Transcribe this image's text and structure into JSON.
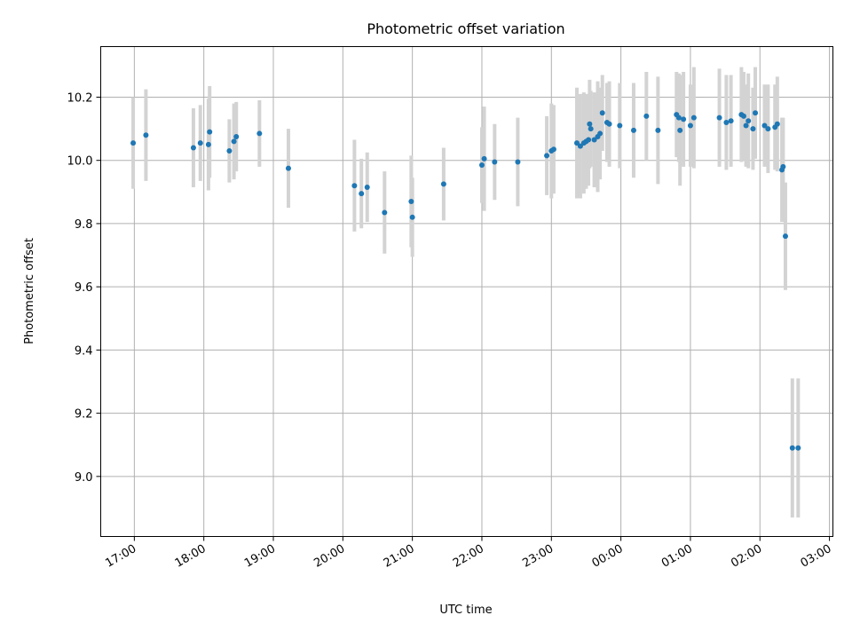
{
  "chart_data": {
    "type": "scatter",
    "title": "Photometric offset variation",
    "xlabel": "UTC time",
    "ylabel": "Photometric offset",
    "x_ticks": [
      "17:00",
      "18:00",
      "19:00",
      "20:00",
      "21:00",
      "22:00",
      "23:00",
      "00:00",
      "01:00",
      "02:00",
      "03:00"
    ],
    "y_ticks": [
      "9.0",
      "9.2",
      "9.4",
      "9.6",
      "9.8",
      "10.0",
      "10.2"
    ],
    "xlim": [
      "16:31",
      "03:03"
    ],
    "ylim": [
      8.81,
      10.36
    ],
    "grid": true,
    "errorbar_color": "#d3d3d3",
    "point_color": "#1f77b4",
    "series": [
      {
        "x": [
          "16:59",
          "17:10",
          "17:51",
          "17:57",
          "18:04",
          "18:05",
          "18:22",
          "18:26",
          "18:28",
          "18:48",
          "19:13",
          "20:10",
          "20:16",
          "20:21",
          "20:36",
          "20:59",
          "21:00",
          "21:27",
          "22:00",
          "22:02",
          "22:11",
          "22:31",
          "22:56",
          "23:00",
          "23:02",
          "23:22",
          "23:25",
          "23:28",
          "23:30",
          "23:32",
          "23:33",
          "23:34",
          "23:37",
          "23:40",
          "23:42",
          "23:44",
          "23:48",
          "23:50",
          "23:59",
          "00:11",
          "00:22",
          "00:32",
          "00:48",
          "00:50",
          "00:51",
          "00:54",
          "01:00",
          "01:03",
          "01:25",
          "01:31",
          "01:35",
          "01:44",
          "01:46",
          "01:48",
          "01:50",
          "01:54",
          "01:56",
          "02:04",
          "02:07",
          "02:13",
          "02:15",
          "02:19",
          "02:20",
          "02:22",
          "02:28",
          "02:33"
        ],
        "y": [
          10.055,
          10.08,
          10.04,
          10.055,
          10.05,
          10.09,
          10.03,
          10.06,
          10.075,
          10.085,
          9.975,
          9.92,
          9.895,
          9.915,
          9.835,
          9.87,
          9.82,
          9.925,
          9.985,
          10.005,
          9.995,
          9.995,
          10.015,
          10.03,
          10.035,
          10.055,
          10.045,
          10.055,
          10.06,
          10.065,
          10.115,
          10.1,
          10.065,
          10.075,
          10.085,
          10.15,
          10.12,
          10.115,
          10.11,
          10.095,
          10.14,
          10.095,
          10.145,
          10.135,
          10.095,
          10.13,
          10.11,
          10.135,
          10.135,
          10.12,
          10.125,
          10.145,
          10.14,
          10.11,
          10.125,
          10.1,
          10.15,
          10.11,
          10.1,
          10.105,
          10.115,
          9.97,
          9.98,
          9.76,
          9.09,
          9.09
        ],
        "yerr": [
          0.145,
          0.145,
          0.125,
          0.12,
          0.145,
          0.145,
          0.1,
          0.12,
          0.11,
          0.105,
          0.125,
          0.145,
          0.11,
          0.11,
          0.13,
          0.145,
          0.125,
          0.115,
          0.12,
          0.165,
          0.12,
          0.14,
          0.125,
          0.15,
          0.14,
          0.175,
          0.165,
          0.16,
          0.15,
          0.145,
          0.14,
          0.12,
          0.15,
          0.175,
          0.145,
          0.12,
          0.125,
          0.135,
          0.135,
          0.15,
          0.14,
          0.17,
          0.135,
          0.14,
          0.175,
          0.15,
          0.13,
          0.16,
          0.155,
          0.15,
          0.145,
          0.15,
          0.14,
          0.13,
          0.15,
          0.13,
          0.145,
          0.13,
          0.14,
          0.135,
          0.15,
          0.165,
          0.155,
          0.17,
          0.22,
          0.22
        ]
      }
    ]
  }
}
